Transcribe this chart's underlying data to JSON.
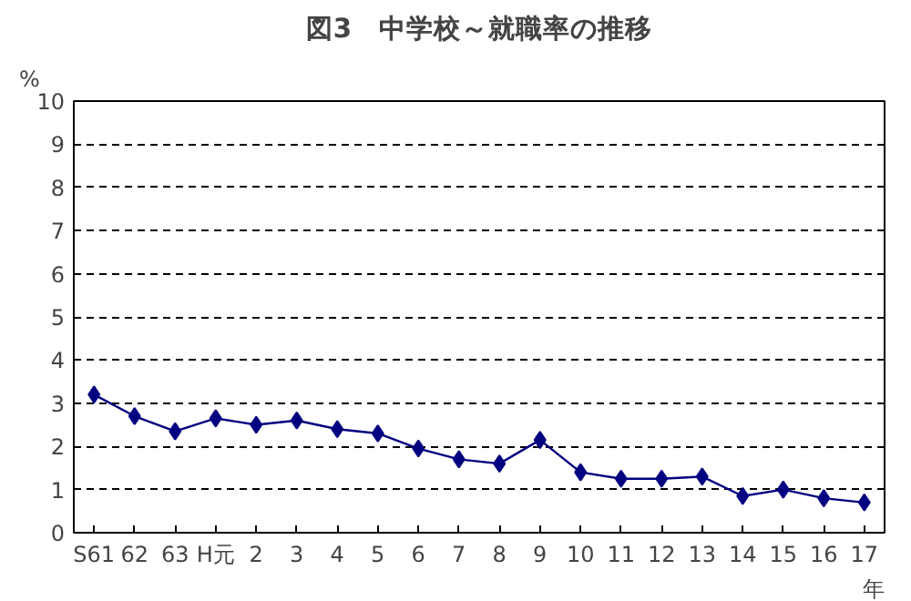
{
  "chart_data": {
    "type": "line",
    "title": "図3　中学校～就職率の推移",
    "ylabel": "%",
    "xlabel": "年",
    "categories": [
      "S61",
      "62",
      "63",
      "H元",
      "2",
      "3",
      "4",
      "5",
      "6",
      "7",
      "8",
      "9",
      "10",
      "11",
      "12",
      "13",
      "14",
      "15",
      "16",
      "17"
    ],
    "series": [
      {
        "color": "#000080",
        "values": [
          3.2,
          2.7,
          2.35,
          2.65,
          2.5,
          2.6,
          2.4,
          2.3,
          1.95,
          1.7,
          1.6,
          2.15,
          1.4,
          1.25,
          1.25,
          1.3,
          0.85,
          1.0,
          0.8,
          0.7
        ]
      }
    ],
    "ylim": [
      0,
      10
    ],
    "yticks": [
      0,
      1,
      2,
      3,
      4,
      5,
      6,
      7,
      8,
      9,
      10
    ],
    "grid": "y",
    "marker": "diamond",
    "line_style": "solid"
  }
}
